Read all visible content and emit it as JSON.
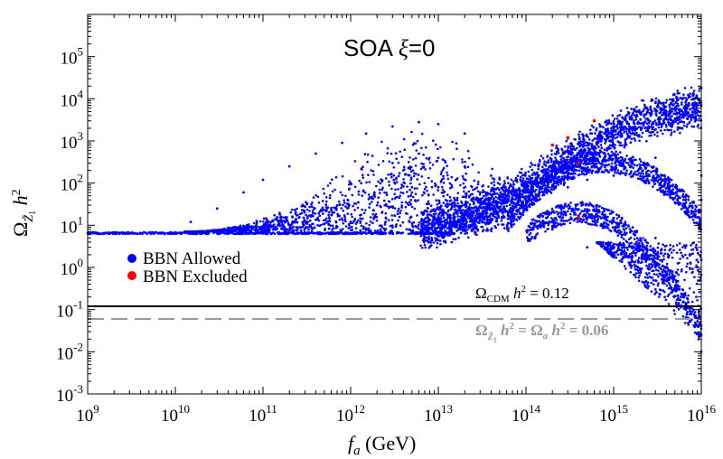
{
  "chart_data": {
    "type": "scatter",
    "title": "SOA ξ=0",
    "xlabel": "f_a (GeV)",
    "ylabel": "Ω_{Z̃1} h^2",
    "x_scale": "log",
    "y_scale": "log",
    "xlim": [
      1000000000.0,
      1e+16
    ],
    "ylim": [
      0.001,
      1000000.0
    ],
    "x_ticks": [
      {
        "base": "10",
        "exp": "9",
        "value": 1000000000.0
      },
      {
        "base": "10",
        "exp": "10",
        "value": 10000000000.0
      },
      {
        "base": "10",
        "exp": "11",
        "value": 100000000000.0
      },
      {
        "base": "10",
        "exp": "12",
        "value": 1000000000000.0
      },
      {
        "base": "10",
        "exp": "13",
        "value": 10000000000000.0
      },
      {
        "base": "10",
        "exp": "14",
        "value": 100000000000000.0
      },
      {
        "base": "10",
        "exp": "15",
        "value": 1000000000000000.0
      },
      {
        "base": "10",
        "exp": "16",
        "value": 1e+16
      }
    ],
    "y_ticks": [
      {
        "base": "10",
        "exp": "-3",
        "value": 0.001
      },
      {
        "base": "10",
        "exp": "-2",
        "value": 0.01
      },
      {
        "base": "10",
        "exp": "-1",
        "value": 0.1
      },
      {
        "base": "10",
        "exp": "0",
        "value": 1.0
      },
      {
        "base": "10",
        "exp": "1",
        "value": 10.0
      },
      {
        "base": "10",
        "exp": "2",
        "value": 100.0
      },
      {
        "base": "10",
        "exp": "3",
        "value": 1000.0
      },
      {
        "base": "10",
        "exp": "4",
        "value": 10000.0
      },
      {
        "base": "10",
        "exp": "5",
        "value": 100000.0
      }
    ],
    "legend": [
      {
        "label": "BBN Allowed",
        "color": "#0000ff"
      },
      {
        "label": "BBN Excluded",
        "color": "#ff0000"
      }
    ],
    "reference_lines": [
      {
        "name": "cdm",
        "value": 0.12,
        "label": "Ω_CDM h^2 = 0.12",
        "color": "#000000",
        "style": "solid"
      },
      {
        "name": "half",
        "value": 0.06,
        "label": "Ω_Z̃1 h^2 = Ω_a h^2 = 0.06",
        "color": "#999999",
        "style": "dashed"
      }
    ],
    "series": [
      {
        "name": "BBN Allowed",
        "color": "#0000ff",
        "points": [
          [
            1000000000.0,
            6.5
          ],
          [
            3000000000.0,
            6.5
          ],
          [
            10000000000.0,
            6.5
          ],
          [
            30000000000.0,
            6.5
          ],
          [
            100000000000.0,
            6.5
          ],
          [
            300000000000.0,
            6.5
          ],
          [
            1000000000000.0,
            6.5
          ],
          [
            3000000000000.0,
            6.6
          ],
          [
            10000000000000.0,
            7
          ],
          [
            15000000000.0,
            12
          ],
          [
            30000000000.0,
            25
          ],
          [
            60000000000.0,
            60
          ],
          [
            100000000000.0,
            120
          ],
          [
            200000000000.0,
            250
          ],
          [
            400000000000.0,
            500
          ],
          [
            800000000000.0,
            900
          ],
          [
            1500000000000.0,
            1500
          ],
          [
            3000000000000.0,
            2200
          ],
          [
            6000000000000.0,
            2800
          ],
          [
            10000000000000.0,
            2500
          ],
          [
            20000000000000.0,
            1500
          ],
          [
            1000000000000.0,
            100
          ],
          [
            3000000000000.0,
            300
          ],
          [
            6000000000000.0,
            500
          ],
          [
            10000000000000.0,
            400
          ],
          [
            20000000000000.0,
            250
          ],
          [
            40000000000000.0,
            150
          ],
          [
            2000000000000.0,
            30
          ],
          [
            5000000000000.0,
            60
          ],
          [
            10000000000000.0,
            80
          ],
          [
            30000000000000.0,
            60
          ],
          [
            30000000000000.0,
            15
          ],
          [
            100000000000000.0,
            60
          ],
          [
            300000000000000.0,
            300
          ],
          [
            1000000000000000.0,
            2000
          ],
          [
            3000000000000000.0,
            8000
          ],
          [
            1e+16,
            18000
          ],
          [
            100000000000000.0,
            30
          ],
          [
            300000000000000.0,
            150
          ],
          [
            1000000000000000.0,
            500
          ],
          [
            3000000000000000.0,
            400
          ],
          [
            1e+16,
            150
          ],
          [
            300000000000000.0,
            80
          ],
          [
            500000000000000.0,
            120
          ],
          [
            1000000000000000.0,
            150
          ],
          [
            3000000000000000.0,
            120
          ],
          [
            1e+16,
            40
          ],
          [
            200000000000000.0,
            8
          ],
          [
            500000000000000.0,
            20
          ],
          [
            1000000000000000.0,
            15
          ],
          [
            3000000000000000.0,
            5
          ],
          [
            1e+16,
            1.5
          ],
          [
            500000000000000.0,
            3
          ],
          [
            1000000000000000.0,
            2
          ],
          [
            3000000000000000.0,
            0.3
          ],
          [
            1e+16,
            0.01
          ]
        ]
      },
      {
        "name": "BBN Excluded",
        "color": "#ff0000",
        "points": [
          [
            200000000000000.0,
            800
          ],
          [
            300000000000000.0,
            1200
          ],
          [
            600000000000000.0,
            3000
          ],
          [
            400000000000000.0,
            300
          ],
          [
            400000000000000.0,
            15
          ]
        ]
      }
    ]
  }
}
